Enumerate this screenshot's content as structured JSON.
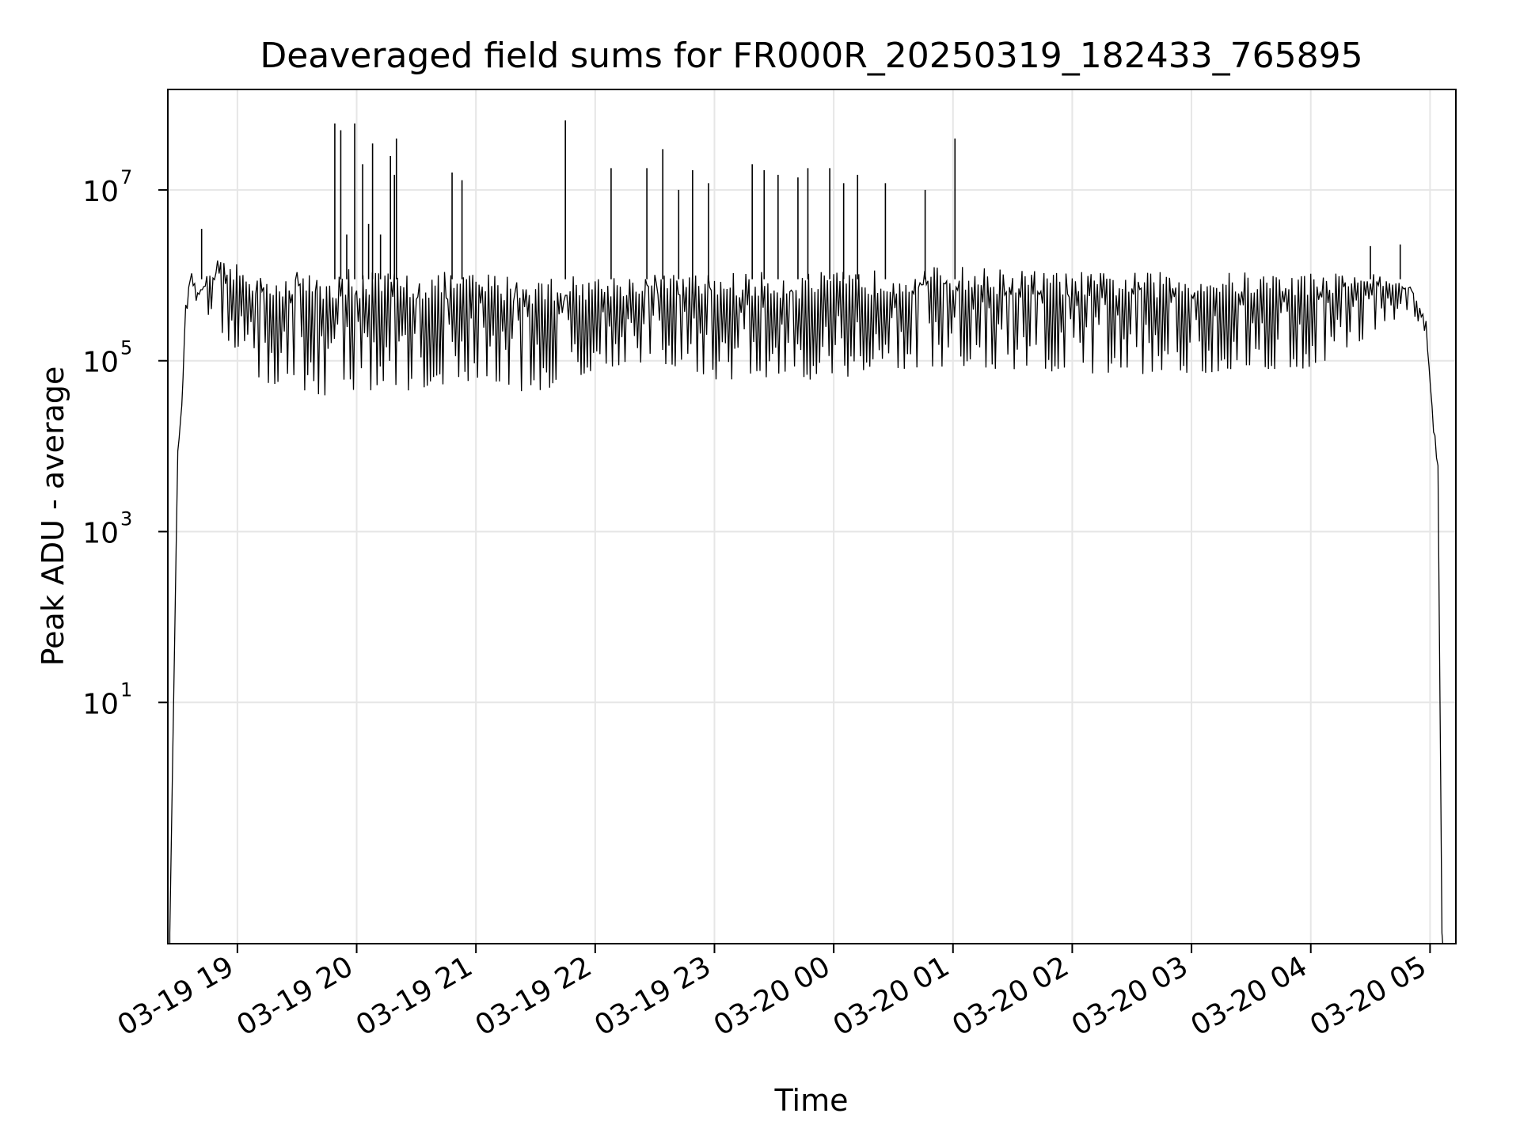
{
  "chart_data": {
    "type": "line",
    "title": "Deaveraged field sums for FR000R_20250319_182433_765895",
    "xlabel": "Time",
    "ylabel": "Peak ADU - average",
    "yscale": "log",
    "ylim": [
      0.015,
      150000000.0
    ],
    "xlim": [
      "2025-03-19 18:25",
      "2025-03-20 05:13"
    ],
    "grid": true,
    "line_color": "#000000",
    "grid_color": "#e6e6e6",
    "x_ticks": [
      {
        "value": "2025-03-19 19:00",
        "label": "03-19 19"
      },
      {
        "value": "2025-03-19 20:00",
        "label": "03-19 20"
      },
      {
        "value": "2025-03-19 21:00",
        "label": "03-19 21"
      },
      {
        "value": "2025-03-19 22:00",
        "label": "03-19 22"
      },
      {
        "value": "2025-03-19 23:00",
        "label": "03-19 23"
      },
      {
        "value": "2025-03-20 00:00",
        "label": "03-20 00"
      },
      {
        "value": "2025-03-20 01:00",
        "label": "03-20 01"
      },
      {
        "value": "2025-03-20 02:00",
        "label": "03-20 02"
      },
      {
        "value": "2025-03-20 03:00",
        "label": "03-20 03"
      },
      {
        "value": "2025-03-20 04:00",
        "label": "03-20 04"
      },
      {
        "value": "2025-03-20 05:00",
        "label": "03-20 05"
      }
    ],
    "y_ticks": [
      {
        "value": 10,
        "base": "10",
        "exp": "1"
      },
      {
        "value": 1000,
        "base": "10",
        "exp": "3"
      },
      {
        "value": 100000,
        "base": "10",
        "exp": "5"
      },
      {
        "value": 10000000,
        "base": "10",
        "exp": "7"
      }
    ],
    "series": [
      {
        "band": [
          {
            "x": "2025-03-19 18:26",
            "low": 0.02,
            "high": 0.02
          },
          {
            "x": "2025-03-19 18:30",
            "low": 8000,
            "high": 9000
          },
          {
            "x": "2025-03-19 18:32",
            "low": 20000,
            "high": 30000
          },
          {
            "x": "2025-03-19 18:34",
            "low": 300000,
            "high": 500000
          },
          {
            "x": "2025-03-19 18:37",
            "low": 900000,
            "high": 1100000
          },
          {
            "x": "2025-03-19 18:40",
            "low": 400000,
            "high": 700000
          },
          {
            "x": "2025-03-19 18:50",
            "low": 250000,
            "high": 1500000
          },
          {
            "x": "2025-03-19 19:10",
            "low": 60000,
            "high": 1200000
          },
          {
            "x": "2025-03-19 19:30",
            "low": 40000,
            "high": 1200000
          },
          {
            "x": "2025-03-19 19:40",
            "low": 38000,
            "high": 1200000
          },
          {
            "x": "2025-03-19 20:00",
            "low": 45000,
            "high": 1200000
          },
          {
            "x": "2025-03-19 20:30",
            "low": 45000,
            "high": 1100000
          },
          {
            "x": "2025-03-19 21:00",
            "low": 60000,
            "high": 1100000
          },
          {
            "x": "2025-03-19 21:30",
            "low": 40000,
            "high": 1000000
          },
          {
            "x": "2025-03-19 22:00",
            "low": 80000,
            "high": 1000000
          },
          {
            "x": "2025-03-19 22:30",
            "low": 100000,
            "high": 1050000
          },
          {
            "x": "2025-03-19 23:00",
            "low": 60000,
            "high": 1100000
          },
          {
            "x": "2025-03-19 23:30",
            "low": 60000,
            "high": 1100000
          },
          {
            "x": "2025-03-20 00:00",
            "low": 60000,
            "high": 1100000
          },
          {
            "x": "2025-03-20 00:30",
            "low": 80000,
            "high": 1200000
          },
          {
            "x": "2025-03-20 01:00",
            "low": 80000,
            "high": 1300000
          },
          {
            "x": "2025-03-20 01:30",
            "low": 70000,
            "high": 1200000
          },
          {
            "x": "2025-03-20 02:00",
            "low": 70000,
            "high": 1100000
          },
          {
            "x": "2025-03-20 02:30",
            "low": 70000,
            "high": 1100000
          },
          {
            "x": "2025-03-20 03:00",
            "low": 70000,
            "high": 1100000
          },
          {
            "x": "2025-03-20 03:30",
            "low": 80000,
            "high": 1100000
          },
          {
            "x": "2025-03-20 04:00",
            "low": 80000,
            "high": 1100000
          },
          {
            "x": "2025-03-20 04:30",
            "low": 200000,
            "high": 1100000
          },
          {
            "x": "2025-03-20 04:50",
            "low": 400000,
            "high": 800000
          },
          {
            "x": "2025-03-20 04:58",
            "low": 200000,
            "high": 300000
          },
          {
            "x": "2025-03-20 05:01",
            "low": 20000,
            "high": 30000
          },
          {
            "x": "2025-03-20 05:04",
            "low": 5000,
            "high": 6000
          },
          {
            "x": "2025-03-20 05:06",
            "low": 0.02,
            "high": 0.02
          }
        ],
        "spikes": [
          {
            "x": "2025-03-19 18:42",
            "y": 3500000
          },
          {
            "x": "2025-03-19 19:49",
            "y": 60000000
          },
          {
            "x": "2025-03-19 19:52",
            "y": 50000000
          },
          {
            "x": "2025-03-19 19:55",
            "y": 3000000
          },
          {
            "x": "2025-03-19 19:59",
            "y": 60000000
          },
          {
            "x": "2025-03-19 20:03",
            "y": 20000000
          },
          {
            "x": "2025-03-19 20:06",
            "y": 4000000
          },
          {
            "x": "2025-03-19 20:08",
            "y": 35000000
          },
          {
            "x": "2025-03-19 20:12",
            "y": 3000000
          },
          {
            "x": "2025-03-19 20:17",
            "y": 25000000
          },
          {
            "x": "2025-03-19 20:19",
            "y": 15000000
          },
          {
            "x": "2025-03-19 20:20",
            "y": 40000000
          },
          {
            "x": "2025-03-19 20:48",
            "y": 16000000
          },
          {
            "x": "2025-03-19 20:53",
            "y": 13000000
          },
          {
            "x": "2025-03-19 21:45",
            "y": 65000000
          },
          {
            "x": "2025-03-19 22:08",
            "y": 18000000
          },
          {
            "x": "2025-03-19 22:26",
            "y": 18000000
          },
          {
            "x": "2025-03-19 22:34",
            "y": 30000000
          },
          {
            "x": "2025-03-19 22:42",
            "y": 10000000
          },
          {
            "x": "2025-03-19 22:49",
            "y": 17000000
          },
          {
            "x": "2025-03-19 22:57",
            "y": 12000000
          },
          {
            "x": "2025-03-19 23:19",
            "y": 20000000
          },
          {
            "x": "2025-03-19 23:25",
            "y": 17000000
          },
          {
            "x": "2025-03-19 23:32",
            "y": 15000000
          },
          {
            "x": "2025-03-19 23:42",
            "y": 14000000
          },
          {
            "x": "2025-03-19 23:47",
            "y": 18000000
          },
          {
            "x": "2025-03-19 23:58",
            "y": 18000000
          },
          {
            "x": "2025-03-20 00:05",
            "y": 12000000
          },
          {
            "x": "2025-03-20 00:12",
            "y": 15000000
          },
          {
            "x": "2025-03-20 00:26",
            "y": 12000000
          },
          {
            "x": "2025-03-20 00:46",
            "y": 10000000
          },
          {
            "x": "2025-03-20 01:01",
            "y": 40000000
          },
          {
            "x": "2025-03-20 04:30",
            "y": 2200000
          },
          {
            "x": "2025-03-20 04:45",
            "y": 2300000
          }
        ]
      }
    ]
  }
}
